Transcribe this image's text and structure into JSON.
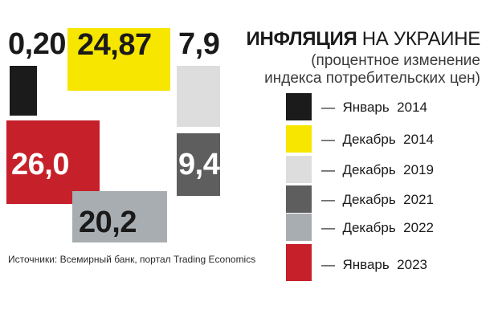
{
  "title_bold": "ИНФЛЯЦИЯ",
  "title_rest": " НА УКРАИНЕ",
  "subtitle_line1": "(процентное изменение",
  "subtitle_line2": "индекса потребительских цен)",
  "source": "Источники: Всемирный банк, портал Trading Economics",
  "colors": {
    "jan2014": "#1b1b1b",
    "dec2014": "#f7e600",
    "dec2019": "#dddddd",
    "dec2021": "#5e5e5e",
    "dec2022": "#a8adb1",
    "jan2023": "#c6202a"
  },
  "chart_data": {
    "type": "area",
    "title": "ИНФЛЯЦИЯ НА УКРАИНЕ",
    "subtitle": "(процентное изменение индекса потребительских цен)",
    "categories": [
      "Январь 2014",
      "Декабрь 2014",
      "Декабрь 2019",
      "Декабрь 2021",
      "Декабрь 2022",
      "Январь 2023"
    ],
    "values": [
      0.2,
      24.87,
      7.9,
      9.4,
      20.2,
      26.0
    ],
    "value_labels": [
      "0,20",
      "24,87",
      "7,9",
      "9,4",
      "20,2",
      "26,0"
    ],
    "legend": [
      {
        "month": "Январь",
        "year": "2014",
        "color_key": "jan2014"
      },
      {
        "month": "Декабрь",
        "year": "2014",
        "color_key": "dec2014"
      },
      {
        "month": "Декабрь",
        "year": "2019",
        "color_key": "dec2019"
      },
      {
        "month": "Декабрь",
        "year": "2021",
        "color_key": "dec2021"
      },
      {
        "month": "Декабрь",
        "year": "2022",
        "color_key": "dec2022"
      },
      {
        "month": "Январь",
        "year": "2023",
        "color_key": "jan2023"
      }
    ],
    "legend_placement": "right",
    "encoding": "square blocks, area proportional to value"
  }
}
